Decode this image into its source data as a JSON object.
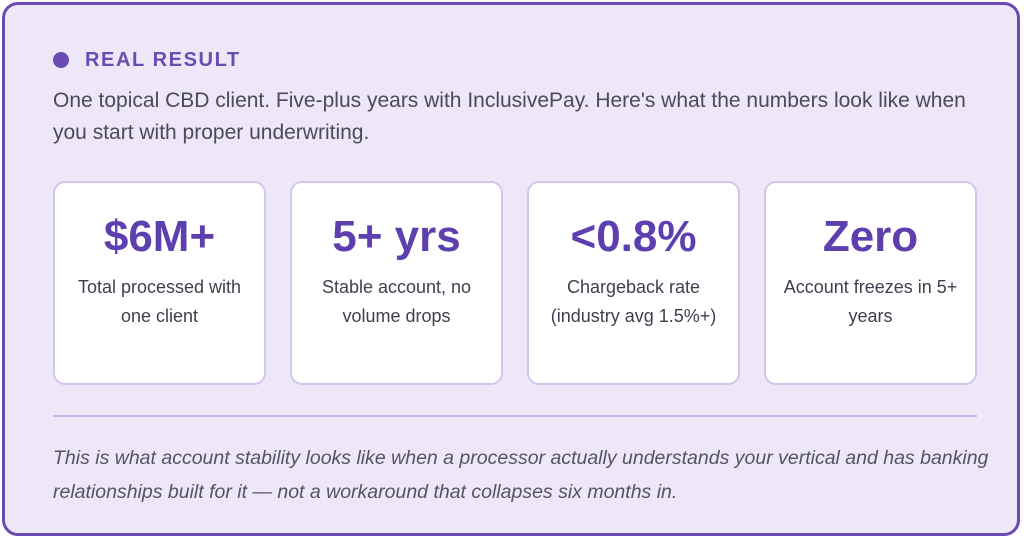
{
  "header": {
    "eyebrow": "REAL RESULT",
    "intro": "One topical CBD client. Five-plus years with InclusivePay. Here's what the numbers look like when you start with proper underwriting."
  },
  "stats": [
    {
      "value": "$6M+",
      "label": "Total processed with one client"
    },
    {
      "value": "5+ yrs",
      "label": "Stable account, no volume drops"
    },
    {
      "value": "<0.8%",
      "label": "Chargeback rate (industry avg 1.5%+)"
    },
    {
      "value": "Zero",
      "label": "Account freezes in 5+ years"
    }
  ],
  "footer": {
    "quote": "This is what account stability looks like when a processor actually understands your vertical and has banking relationships built for it — not a workaround that collapses six months in."
  },
  "colors": {
    "accent": "#6a4bb2",
    "card_background": "#ede7f8",
    "stat_border": "#d3c6ee"
  }
}
